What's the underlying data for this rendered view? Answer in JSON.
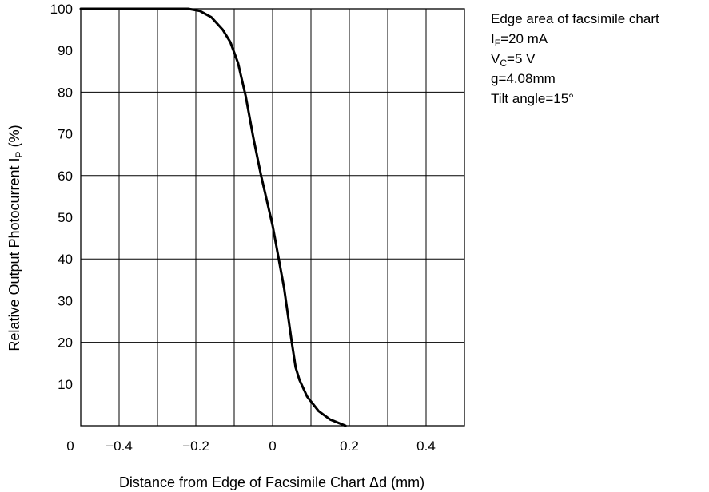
{
  "chart_data": {
    "type": "line",
    "xlabel": "Distance from Edge of Facsimile Chart Δd (mm)",
    "ylabel_main": "Relative Output Photocurrent I",
    "ylabel_sub": "P",
    "ylabel_unit": " (%)",
    "xlim": [
      -0.5,
      0.5
    ],
    "ylim": [
      0,
      100
    ],
    "x_ticks": [
      "0",
      "−0.4",
      "−0.2",
      "0",
      "0.2",
      "0.4"
    ],
    "y_ticks": [
      "100",
      "90",
      "80",
      "70",
      "60",
      "50",
      "40",
      "30",
      "20",
      "10"
    ],
    "grid": true,
    "series": [
      {
        "x": [
          -0.5,
          -0.3,
          -0.22,
          -0.19,
          -0.16,
          -0.13,
          -0.11,
          -0.09,
          -0.07,
          -0.05,
          -0.03,
          0.0,
          0.03,
          0.05,
          0.06,
          0.07,
          0.09,
          0.12,
          0.15,
          0.19
        ],
        "y": [
          100,
          100,
          100,
          99.5,
          98,
          95,
          92,
          87,
          79,
          69,
          60,
          48,
          33,
          20,
          14,
          11,
          7,
          3.5,
          1.5,
          0
        ]
      }
    ],
    "annotations": {
      "line1": "Edge area of facsimile chart",
      "line2_main": "I",
      "line2_sub": "F",
      "line2_rest": "=20 mA",
      "line3_main": "V",
      "line3_sub": "C",
      "line3_rest": "=5 V",
      "line4": "g=4.08mm",
      "line5": "Tilt angle=15°"
    }
  }
}
